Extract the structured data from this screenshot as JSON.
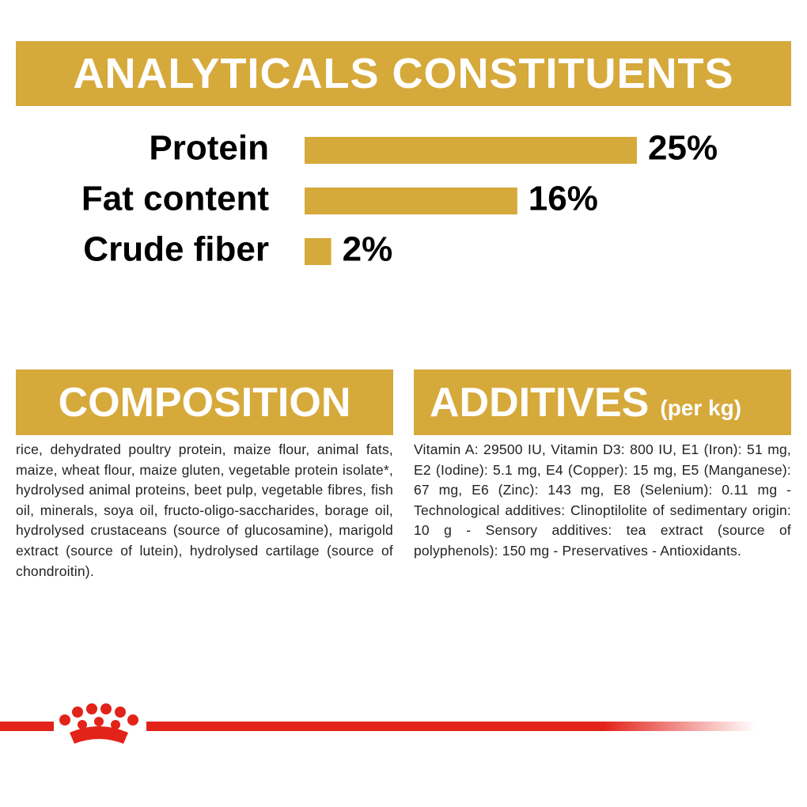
{
  "chart_data": {
    "type": "bar",
    "orientation": "horizontal",
    "title": "ANALYTICALS CONSTITUENTS",
    "categories": [
      "Protein",
      "Fat content",
      "Crude fiber"
    ],
    "values": [
      25,
      16,
      2
    ],
    "value_labels": [
      "25%",
      "16%",
      "2%"
    ],
    "color": "#d6a93b"
  },
  "composition": {
    "title": "COMPOSITION",
    "text": "rice, dehydrated poultry protein, maize flour, animal fats, maize, wheat flour, maize gluten, vegetable protein isolate*, hydrolysed animal proteins, beet pulp, vegetable fibres, fish oil, minerals, soya oil, fructo-oligo-saccharides, borage oil, hydrolysed crustaceans (source of glucosamine), marigold extract (source of lutein), hydrolysed cartilage (source of chondroitin)."
  },
  "additives": {
    "title": "ADDITIVES",
    "subtitle": "(per kg)",
    "text": "Vitamin A: 29500 IU, Vitamin D3: 800 IU, E1 (Iron): 51 mg, E2 (Iodine): 5.1 mg, E4 (Copper): 15 mg, E5 (Manganese): 67 mg, E6 (Zinc): 143 mg, E8 (Selenium): 0.11 mg - Technological additives: Clinoptilolite of sedimentary origin: 10 g - Sensory additives: tea extract (source of polyphenols): 150 mg - Preservatives - Antioxidants."
  }
}
